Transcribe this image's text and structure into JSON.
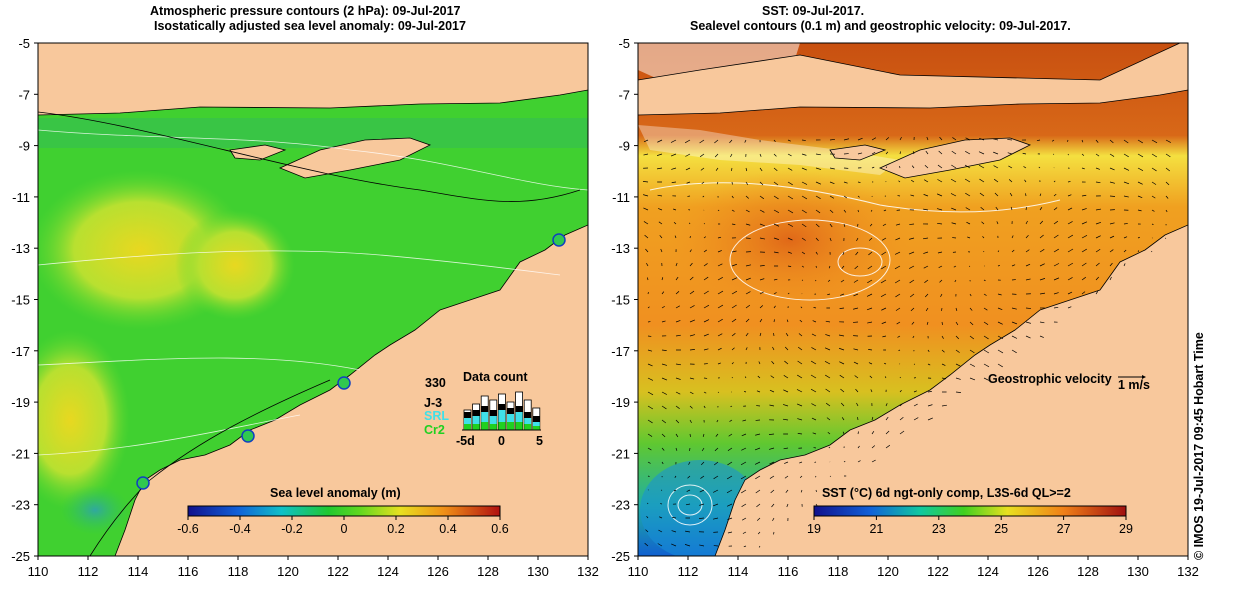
{
  "left_panel": {
    "title_line1": "Atmospheric pressure contours (2 hPa): 09-Jul-2017",
    "title_line2": "Isostatically adjusted sea level anomaly: 09-Jul-2017",
    "colorbar": {
      "label": "Sea level anomaly (m)",
      "ticks": [
        "-0.6",
        "-0.4",
        "-0.2",
        "0",
        "0.2",
        "0.4",
        "0.6"
      ],
      "colors": [
        "#10108c",
        "#1060d8",
        "#10b0e0",
        "#10c8a0",
        "#20c830",
        "#60d820",
        "#a8e020",
        "#e8e020",
        "#f0b818",
        "#f08018",
        "#e04010",
        "#b01010"
      ]
    },
    "datacount": {
      "title": "Data count",
      "max_label": "330",
      "missions": [
        {
          "label": "J-3",
          "color": "#000000"
        },
        {
          "label": "SRL",
          "color": "#40e0e8"
        },
        {
          "label": "Cr2",
          "color": "#20d020"
        }
      ],
      "axis_labels": [
        "-5d",
        "0",
        "5"
      ]
    }
  },
  "right_panel": {
    "title_line1": "SST: 09-Jul-2017.",
    "title_line2": "Sealevel contours (0.1 m) and geostrophic velocity: 09-Jul-2017.",
    "colorbar": {
      "label": "SST (°C) 6d ngt-only comp, L3S-6d QL>=2",
      "ticks": [
        "19",
        "21",
        "23",
        "25",
        "27",
        "29"
      ],
      "colors": [
        "#10108c",
        "#1050d0",
        "#10a0e0",
        "#10c8a0",
        "#20c840",
        "#70d820",
        "#c8e020",
        "#f0d010",
        "#f0a010",
        "#e87010",
        "#d04010",
        "#a01010"
      ]
    },
    "velocity_legend": {
      "label": "Geostrophic velocity",
      "scale_label": "1 m/s"
    }
  },
  "axes": {
    "x_ticks": [
      "110",
      "112",
      "114",
      "116",
      "118",
      "120",
      "122",
      "124",
      "126",
      "128",
      "130",
      "132"
    ],
    "y_ticks": [
      "-5",
      "-7",
      "-9",
      "-11",
      "-13",
      "-15",
      "-17",
      "-19",
      "-21",
      "-23",
      "-25"
    ]
  },
  "colors": {
    "land": "#f8c89c",
    "ocean_green": "#30d030",
    "sst_orange": "#f09020",
    "sst_red": "#c04810"
  },
  "credit": "© IMOS 19-Jul-2017 09:45 Hobart Time"
}
